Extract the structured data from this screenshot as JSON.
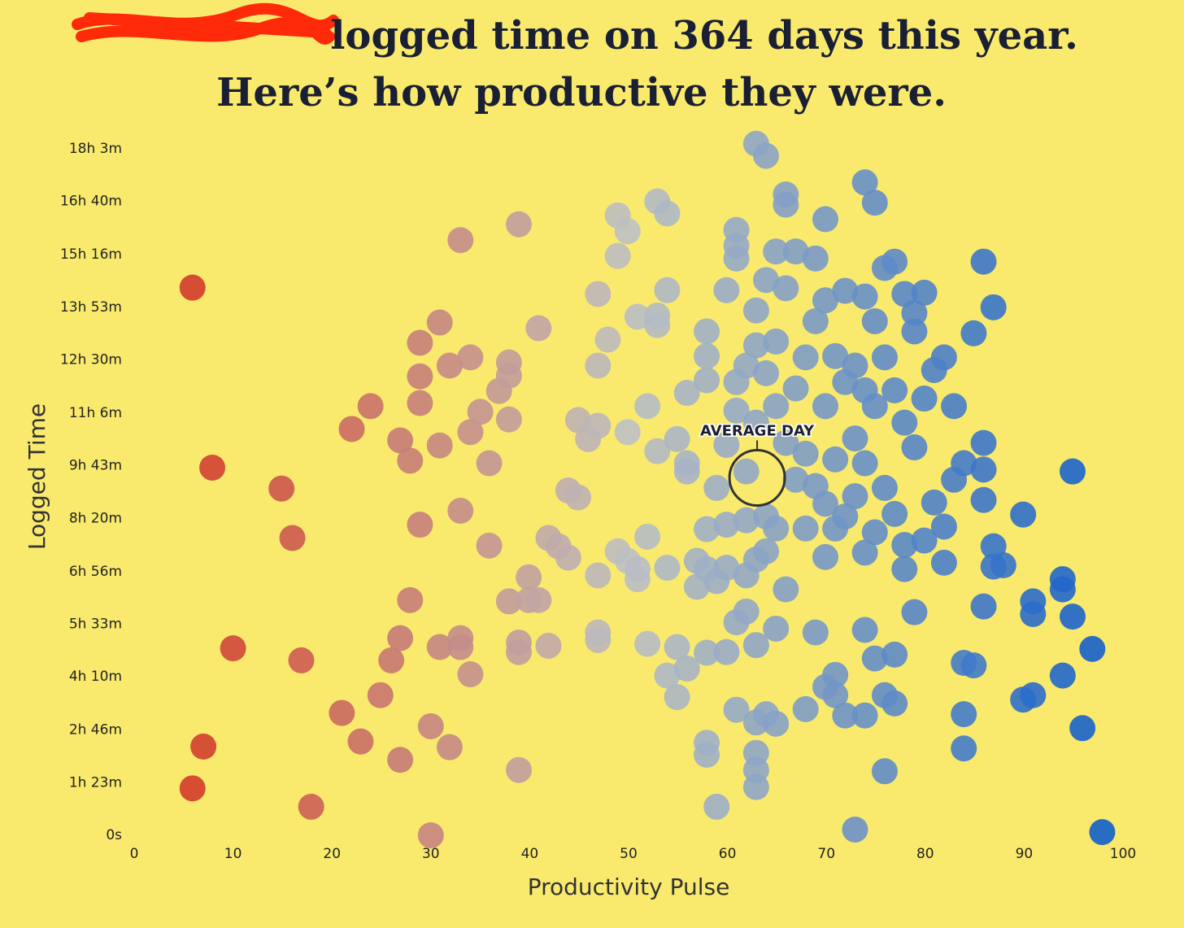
{
  "chart_data": {
    "type": "scatter",
    "title": [
      "logged time on 364 days this year.",
      "Here’s how productive they were."
    ],
    "x_label": "Productivity Pulse",
    "y_label": "Logged Time",
    "xlim": [
      0,
      100
    ],
    "xticks": [
      0,
      10,
      20,
      30,
      40,
      50,
      60,
      70,
      80,
      90,
      100
    ],
    "ylim": [
      0,
      1083
    ],
    "yticks": [
      {
        "value": 0,
        "label": "0s"
      },
      {
        "value": 83,
        "label": "1h 23m"
      },
      {
        "value": 166,
        "label": "2h 46m"
      },
      {
        "value": 250,
        "label": "4h 10m"
      },
      {
        "value": 333,
        "label": "5h 33m"
      },
      {
        "value": 416,
        "label": "6h 56m"
      },
      {
        "value": 500,
        "label": "8h 20m"
      },
      {
        "value": 583,
        "label": "9h 43m"
      },
      {
        "value": 666,
        "label": "11h 6m"
      },
      {
        "value": 750,
        "label": "12h 30m"
      },
      {
        "value": 833,
        "label": "13h 53m"
      },
      {
        "value": 916,
        "label": "15h 16m"
      },
      {
        "value": 1000,
        "label": "16h 40m"
      },
      {
        "value": 1083,
        "label": "18h 3m"
      }
    ],
    "colorscale": [
      "#d42a18",
      "#bcc0c4",
      "#0b5bcc"
    ],
    "annotation": {
      "text": "AVERAGE DAY",
      "x": 63,
      "y": 564
    },
    "x": [
      5.9,
      7.9,
      7,
      5.9,
      10,
      14.9,
      16,
      16.9,
      17.9,
      21,
      22,
      22.9,
      23.9,
      24.9,
      26,
      26.9,
      26.9,
      26.9,
      27.9,
      27.9,
      28.9,
      28.9,
      28.9,
      28.9,
      30,
      30,
      30.9,
      30.9,
      30.9,
      31.9,
      31.9,
      33,
      33,
      33,
      33,
      34,
      34,
      34,
      35,
      35.9,
      35.9,
      36.9,
      37.9,
      37.9,
      37.9,
      37.9,
      38.9,
      38.9,
      38.9,
      38.9,
      39.9,
      39.9,
      40.9,
      40.9,
      41.9,
      41.9,
      42.9,
      43.9,
      43.9,
      44.9,
      44.9,
      45.9,
      46.9,
      46.9,
      46.9,
      46.9,
      46.9,
      46.9,
      47.9,
      48.9,
      48.9,
      48.9,
      49.9,
      49.9,
      49.9,
      50.9,
      50.9,
      50.9,
      51.9,
      51.9,
      51.9,
      52.9,
      52.9,
      52.9,
      52.9,
      53.9,
      53.9,
      53.9,
      53.9,
      54.9,
      54.9,
      54.9,
      55.9,
      55.9,
      55.9,
      55.9,
      56.9,
      56.9,
      57.9,
      57.9,
      57.9,
      57.9,
      57.9,
      57.9,
      57.9,
      57.9,
      58.9,
      58.9,
      58.9,
      59.9,
      59.9,
      59.9,
      59.9,
      59.9,
      60.9,
      60.9,
      60.9,
      60.9,
      60.9,
      60.9,
      60.9,
      61.9,
      61.9,
      61.9,
      61.9,
      61.9,
      62.9,
      62.9,
      62.9,
      62.9,
      62.9,
      62.9,
      62.9,
      62.9,
      62.9,
      62.9,
      63.9,
      63.9,
      63.9,
      63.9,
      63.9,
      63.9,
      64.9,
      64.9,
      64.9,
      64.9,
      64.9,
      64.9,
      65.9,
      65.9,
      65.9,
      65.9,
      65.9,
      66.9,
      66.9,
      66.9,
      67.9,
      67.9,
      67.9,
      67.9,
      68.9,
      68.9,
      68.9,
      68.9,
      69.9,
      69.9,
      69.9,
      69.9,
      69.9,
      69.9,
      70.9,
      70.9,
      70.9,
      70.9,
      70.9,
      71.9,
      71.9,
      71.9,
      71.9,
      72.9,
      72.9,
      72.9,
      72.9,
      73.9,
      73.9,
      73.9,
      73.9,
      73.9,
      73.9,
      73.9,
      74.9,
      74.9,
      74.9,
      74.9,
      74.9,
      75.9,
      75.9,
      75.9,
      75.9,
      75.9,
      76.9,
      76.9,
      76.9,
      76.9,
      76.9,
      77.9,
      77.9,
      77.9,
      77.9,
      78.9,
      78.9,
      78.9,
      78.9,
      79.9,
      79.9,
      79.9,
      80.9,
      80.9,
      81.9,
      81.9,
      81.9,
      82.9,
      82.9,
      83.9,
      83.9,
      83.9,
      83.9,
      84.9,
      84.9,
      85.9,
      85.9,
      85.9,
      85.9,
      85.9,
      86.9,
      86.9,
      86.9,
      87.9,
      89.9,
      89.9,
      90.9,
      90.9,
      90.9,
      93.9,
      93.9,
      93.9,
      94.9,
      94.9,
      95.9,
      96.9,
      97.9
    ],
    "values": [
      864,
      580,
      140,
      74,
      295,
      547,
      469,
      276,
      45,
      193,
      641,
      148,
      677,
      221,
      276,
      311,
      119,
      623,
      591,
      371,
      777,
      724,
      682,
      490,
      172,
      0,
      809,
      615,
      297,
      741,
      139,
      939,
      512,
      311,
      297,
      754,
      636,
      254,
      668,
      587,
      457,
      701,
      746,
      725,
      656,
      369,
      964,
      304,
      289,
      103,
      407,
      371,
      800,
      371,
      469,
      299,
      456,
      544,
      438,
      655,
      533,
      625,
      854,
      741,
      646,
      410,
      320,
      308,
      782,
      978,
      914,
      448,
      953,
      636,
      433,
      818,
      420,
      404,
      677,
      471,
      302,
      1000,
      820,
      805,
      606,
      981,
      860,
      422,
      252,
      625,
      297,
      218,
      698,
      587,
      574,
      263,
      433,
      392,
      795,
      756,
      718,
      483,
      420,
      288,
      146,
      127,
      548,
      401,
      45,
      860,
      616,
      490,
      422,
      289,
      955,
      930,
      910,
      715,
      670,
      336,
      198,
      741,
      574,
      497,
      410,
      353,
      1091,
      828,
      773,
      651,
      435,
      300,
      178,
      130,
      103,
      76,
      1072,
      876,
      729,
      503,
      448,
      191,
      921,
      779,
      677,
      484,
      326,
      176,
      1011,
      995,
      863,
      619,
      388,
      921,
      705,
      561,
      754,
      602,
      484,
      199,
      910,
      811,
      551,
      320,
      972,
      844,
      677,
      523,
      439,
      234,
      756,
      593,
      484,
      253,
      221,
      859,
      715,
      503,
      189,
      741,
      626,
      535,
      9,
      1030,
      850,
      702,
      587,
      446,
      324,
      189,
      998,
      811,
      677,
      478,
      279,
      895,
      754,
      548,
      221,
      101,
      905,
      702,
      507,
      285,
      208,
      854,
      651,
      458,
      420,
      824,
      795,
      612,
      352,
      856,
      689,
      465,
      734,
      525,
      754,
      487,
      430,
      677,
      561,
      587,
      272,
      191,
      137,
      792,
      268,
      905,
      619,
      577,
      529,
      361,
      833,
      456,
      424,
      426,
      506,
      214,
      369,
      349,
      221,
      404,
      388,
      252,
      574,
      345,
      169,
      294,
      5
    ]
  }
}
